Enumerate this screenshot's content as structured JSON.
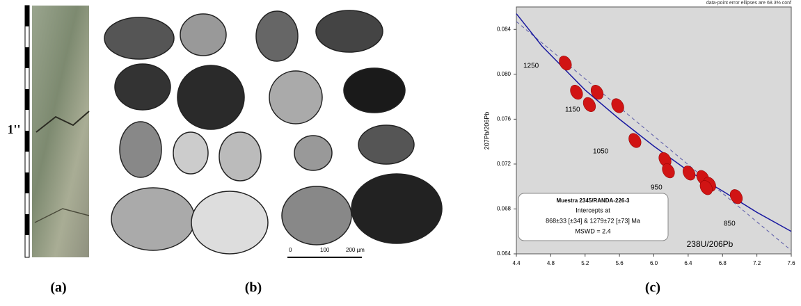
{
  "panels": {
    "a": {
      "label": "(a)",
      "scale_label": "1''"
    },
    "b": {
      "label": "(b)",
      "scale": [
        "0",
        "100",
        "200 µm"
      ]
    },
    "c": {
      "label": "(c)"
    }
  },
  "chart_data": {
    "type": "scatter",
    "note": "data-point error ellipses are 68.3% conf",
    "x_label": "238U/206Pb",
    "y_label": "207Pb/206Pb",
    "x": [
      4.97,
      5.1,
      5.34,
      5.25,
      5.58,
      5.78,
      6.13,
      6.17,
      6.41,
      6.57,
      6.65,
      6.61,
      6.96
    ],
    "values": [
      0.081,
      0.0784,
      0.0784,
      0.0773,
      0.0772,
      0.0741,
      0.0724,
      0.0714,
      0.0712,
      0.0708,
      0.0702,
      0.0699,
      0.0691
    ],
    "color": "#d11414",
    "concordia": {
      "color": "#1a1aa0",
      "x": [
        4.4,
        4.7,
        5.2,
        5.6,
        6.0,
        6.4,
        6.8,
        7.2,
        7.6
      ],
      "values": [
        0.0854,
        0.0825,
        0.0786,
        0.076,
        0.0736,
        0.0714,
        0.0696,
        0.0677,
        0.066
      ]
    },
    "discordia": {
      "color": "#5a5aa8",
      "x": [
        4.4,
        7.6
      ],
      "values": [
        0.0847,
        0.0643
      ]
    },
    "age_labels": [
      "1250",
      "1150",
      "1050",
      "950",
      "850"
    ],
    "box": [
      "Muestra 2345/RANDA-226-3",
      "Intercepts at",
      "868±33  [±34]  & 1279±72  [±73]  Ma",
      "MSWD = 2.4"
    ],
    "xlim": [
      4.4,
      7.6
    ],
    "ylim": [
      0.064,
      0.086
    ],
    "xticks": [
      4.4,
      4.8,
      5.2,
      5.6,
      {
        "value": 6.0,
        "label": "6.0"
      },
      6.4,
      6.8,
      7.2,
      7.6
    ],
    "yticks": [
      0.064,
      0.068,
      0.072,
      0.076,
      {
        "value": 0.08,
        "label": "0.080"
      },
      0.084
    ]
  }
}
